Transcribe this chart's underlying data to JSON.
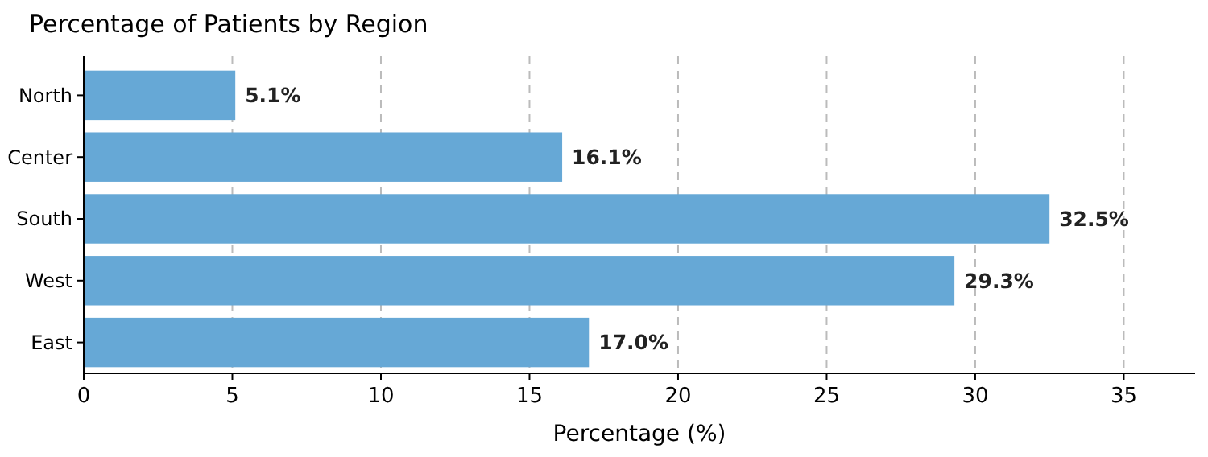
{
  "chart_data": {
    "type": "bar",
    "orientation": "horizontal",
    "title": "Percentage of Patients by Region",
    "xlabel": "Percentage (%)",
    "categories": [
      "North",
      "Center",
      "South",
      "West",
      "East"
    ],
    "values": [
      5.1,
      16.1,
      32.5,
      29.3,
      17.0
    ],
    "value_labels": [
      "5.1%",
      "16.1%",
      "32.5%",
      "29.3%",
      "17.0%"
    ],
    "color": "#66a8d6",
    "xlim": [
      0,
      37.4
    ],
    "xticks": [
      0,
      5,
      10,
      15,
      20,
      25,
      30,
      35
    ],
    "grid": "x"
  }
}
